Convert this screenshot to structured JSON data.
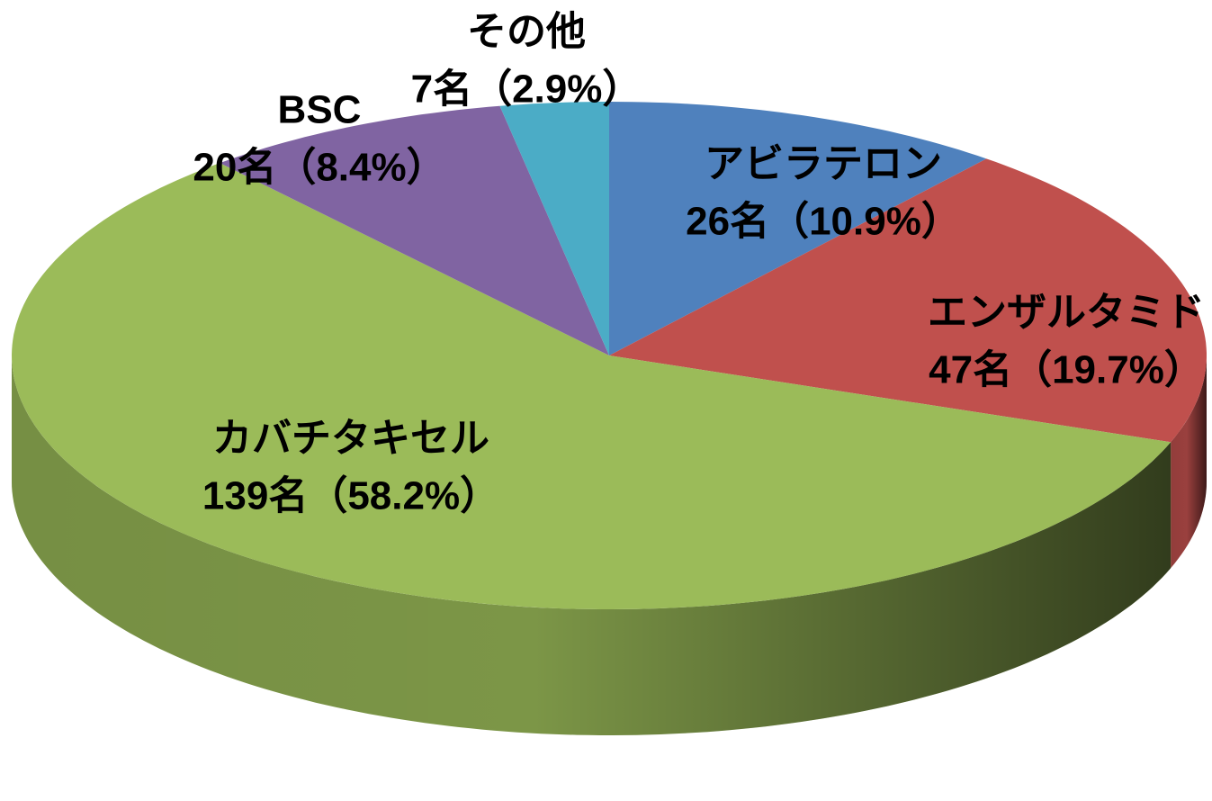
{
  "chart_data": {
    "type": "pie",
    "categories": [
      "アビラテロン",
      "エンザルタミド",
      "カバチタキセル",
      "BSC",
      "その他"
    ],
    "values": [
      26,
      47,
      139,
      20,
      7
    ],
    "value_labels": [
      "26名（10.9%）",
      "47名（19.7%）",
      "139名（58.2%）",
      "20名（8.4%）",
      "7名（2.9%）"
    ],
    "colors": [
      "#4f81bd",
      "#c0504d",
      "#9bbb59",
      "#8064a2",
      "#4bacc6"
    ]
  }
}
